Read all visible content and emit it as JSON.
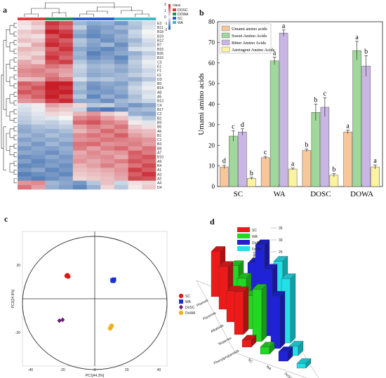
{
  "panels": {
    "a": "a",
    "b": "b",
    "c": "c",
    "d": "d"
  },
  "chart_data": [
    {
      "type": "heatmap",
      "legend_title": "class",
      "legend_entries": [
        {
          "name": "DOSC",
          "color": "#e63a3a"
        },
        {
          "name": "DOWA",
          "color": "#1f8e5a"
        },
        {
          "name": "SC",
          "color": "#2b5fc8"
        },
        {
          "name": "WA",
          "color": "#3fb7c9"
        }
      ],
      "scale_ticks": [
        "2",
        "1",
        "0",
        "-1",
        "-2"
      ],
      "row_labels": [
        "E3",
        "B11",
        "B18",
        "B19",
        "B12",
        "B7",
        "B15",
        "B26",
        "B16",
        "C3",
        "E1",
        "F1",
        "F2",
        "D3",
        "B5",
        "B14",
        "A8",
        "A5",
        "B13",
        "C4",
        "B17",
        "C2",
        "B2",
        "B9",
        "B6",
        "A6",
        "B1",
        "C1",
        "B3",
        "B8",
        "A7",
        "B10",
        "A9",
        "B4",
        "A1",
        "A3",
        "A2",
        "A4",
        "D4"
      ],
      "matrix": [
        [
          0.2,
          0.5,
          1.8,
          1.5,
          -0.8,
          -1.0,
          -0.9,
          -1.2,
          -0.6,
          -0.3
        ],
        [
          0.1,
          0.3,
          1.6,
          1.3,
          -0.5,
          -1.2,
          -1.1,
          -0.8,
          -0.7,
          -0.2
        ],
        [
          0.4,
          0.6,
          2.0,
          1.7,
          -0.9,
          -1.3,
          -1.0,
          -1.1,
          -0.4,
          0.0
        ],
        [
          0.3,
          0.2,
          1.5,
          1.9,
          -1.1,
          -1.4,
          -1.2,
          -0.9,
          -0.5,
          -0.1
        ],
        [
          0.5,
          0.4,
          1.7,
          1.4,
          -0.6,
          -1.0,
          -1.3,
          -1.0,
          -0.8,
          -0.3
        ],
        [
          0.2,
          0.7,
          1.9,
          1.6,
          -0.7,
          -1.1,
          -0.8,
          -1.3,
          -0.6,
          -0.4
        ],
        [
          0.6,
          0.5,
          1.4,
          1.8,
          -1.0,
          -1.2,
          -1.4,
          -1.1,
          -0.3,
          -0.2
        ],
        [
          0.4,
          0.3,
          1.6,
          1.5,
          -0.8,
          -1.5,
          -1.2,
          -1.0,
          -0.9,
          -0.5
        ],
        [
          0.3,
          0.6,
          1.8,
          1.3,
          -0.9,
          -1.3,
          -1.1,
          -1.4,
          -0.7,
          -0.3
        ],
        [
          0.7,
          0.4,
          1.5,
          1.7,
          -0.6,
          -1.0,
          -0.9,
          -1.2,
          -0.5,
          -0.1
        ],
        [
          0.8,
          0.9,
          1.2,
          1.0,
          -0.4,
          -0.8,
          -0.7,
          -0.9,
          -0.6,
          -0.2
        ],
        [
          1.0,
          1.1,
          0.9,
          0.8,
          -0.5,
          -0.9,
          -0.8,
          -1.0,
          -0.7,
          -0.4
        ],
        [
          0.9,
          1.0,
          1.1,
          0.7,
          -0.6,
          -1.0,
          -0.9,
          -0.8,
          -0.5,
          -0.3
        ],
        [
          0.5,
          0.6,
          1.3,
          1.1,
          -0.3,
          -0.7,
          -0.6,
          -0.8,
          -0.9,
          -0.6
        ],
        [
          1.4,
          1.2,
          2.2,
          2.0,
          -0.8,
          -1.2,
          -1.0,
          -1.1,
          -0.6,
          -0.2
        ],
        [
          1.2,
          1.5,
          2.1,
          1.8,
          -0.7,
          -1.3,
          -1.1,
          -0.9,
          -0.4,
          -0.1
        ],
        [
          1.5,
          1.3,
          1.9,
          2.2,
          -0.9,
          -1.1,
          -1.2,
          -1.0,
          -0.5,
          -0.3
        ],
        [
          1.1,
          1.4,
          2.0,
          1.6,
          -0.6,
          -1.4,
          -0.9,
          -1.2,
          -0.7,
          -0.2
        ],
        [
          0.9,
          1.0,
          1.7,
          1.9,
          -1.0,
          -1.0,
          -1.3,
          -0.8,
          -0.6,
          -0.4
        ],
        [
          -0.2,
          0.1,
          0.8,
          0.6,
          0.3,
          -0.6,
          -0.5,
          -0.9,
          -1.2,
          -1.0
        ],
        [
          -0.3,
          -0.1,
          0.5,
          0.4,
          -0.4,
          -1.4,
          -1.6,
          -1.3,
          -0.8,
          -0.7
        ],
        [
          -0.4,
          -0.2,
          0.3,
          0.2,
          0.6,
          0.9,
          0.4,
          0.2,
          -0.9,
          -1.0
        ],
        [
          -0.5,
          -0.3,
          -0.2,
          0.0,
          1.0,
          1.2,
          0.8,
          0.5,
          -0.3,
          -0.6
        ],
        [
          -0.6,
          -0.4,
          -0.5,
          -0.3,
          1.3,
          1.5,
          1.1,
          0.9,
          0.1,
          -0.2
        ],
        [
          -0.9,
          -0.7,
          -0.6,
          -0.5,
          0.8,
          1.1,
          0.9,
          1.2,
          0.4,
          0.2
        ],
        [
          -1.0,
          -0.8,
          -0.9,
          -0.7,
          0.6,
          0.9,
          1.3,
          1.0,
          0.6,
          0.5
        ],
        [
          -0.8,
          -1.0,
          -0.7,
          -0.9,
          1.0,
          1.2,
          1.0,
          1.4,
          0.8,
          0.6
        ],
        [
          -1.1,
          -0.9,
          -1.0,
          -0.8,
          0.9,
          1.0,
          1.2,
          1.1,
          1.0,
          0.9
        ],
        [
          -0.9,
          -1.2,
          -0.8,
          -1.1,
          1.2,
          1.3,
          0.9,
          1.0,
          1.1,
          0.8
        ],
        [
          -1.2,
          -1.0,
          -1.1,
          -0.9,
          1.1,
          0.8,
          1.1,
          1.3,
          0.9,
          1.2
        ],
        [
          -1.0,
          -1.1,
          -1.3,
          -1.0,
          0.7,
          1.0,
          0.8,
          0.9,
          1.4,
          1.1
        ],
        [
          -1.3,
          -1.2,
          -1.0,
          -1.2,
          0.8,
          0.9,
          1.0,
          0.7,
          1.3,
          1.5
        ],
        [
          -1.1,
          -1.4,
          -1.2,
          -1.1,
          0.9,
          0.7,
          0.9,
          1.1,
          1.5,
          1.3
        ],
        [
          -1.4,
          -1.3,
          -1.1,
          -1.3,
          0.6,
          0.8,
          1.1,
          0.8,
          1.2,
          1.6
        ],
        [
          -1.2,
          -1.0,
          -1.4,
          -1.2,
          0.5,
          0.6,
          0.7,
          0.9,
          1.7,
          1.4
        ],
        [
          -1.5,
          -1.3,
          -1.2,
          -1.4,
          0.4,
          0.5,
          0.6,
          0.8,
          1.4,
          1.8
        ],
        [
          -1.3,
          -1.5,
          -1.3,
          -1.1,
          0.3,
          0.4,
          0.5,
          0.7,
          1.6,
          1.5
        ],
        [
          0.9,
          1.0,
          -0.8,
          -1.0,
          -1.2,
          -0.6,
          0.5,
          -0.4,
          0.2,
          0.3
        ],
        [
          1.2,
          0.8,
          -0.9,
          -1.1,
          -1.4,
          -0.9,
          0.3,
          -0.6,
          0.1,
          0.4
        ]
      ],
      "column_classes": [
        "DOSC",
        "DOSC",
        "DOWA",
        "DOWA",
        "SC",
        "SC",
        "SC",
        "WA",
        "WA",
        "WA"
      ]
    },
    {
      "type": "bar",
      "categories": [
        "SC",
        "WA",
        "DOSC",
        "DOWA"
      ],
      "ylabel": "Umami amino acids",
      "ylim": [
        0,
        80
      ],
      "yticks": [
        0,
        10,
        20,
        30,
        40,
        50,
        60,
        70,
        80
      ],
      "series": [
        {
          "name": "Umami amino acids",
          "color": "#f7c79a",
          "values": [
            9.5,
            14,
            17.5,
            26.5
          ],
          "errors": [
            0.8,
            0.6,
            0.7,
            0.9
          ],
          "letters": [
            "d",
            "c",
            "b",
            "a"
          ]
        },
        {
          "name": "Sweet Amino Acids",
          "color": "#9fd89a",
          "values": [
            24.5,
            61,
            36,
            66
          ],
          "errors": [
            2.5,
            1.8,
            4.0,
            4.5
          ],
          "letters": [
            "c",
            "a",
            "b",
            "a"
          ]
        },
        {
          "name": "Bitter Amino Acids",
          "color": "#c9b6e4",
          "values": [
            26.5,
            74.5,
            38.5,
            58.5
          ],
          "errors": [
            1.5,
            1.5,
            4.5,
            5.0
          ],
          "letters": [
            "d",
            "a",
            "c",
            "b"
          ]
        },
        {
          "name": "Astringent Amino Acids",
          "color": "#fbf3a0",
          "values": [
            4,
            8.5,
            5.5,
            9.5
          ],
          "errors": [
            0.5,
            0.5,
            0.8,
            1.0
          ],
          "letters": [
            "b",
            "a",
            "b",
            "a"
          ]
        }
      ]
    },
    {
      "type": "scatter",
      "xlabel": "PC1[44.3%]",
      "ylabel": "PC2[24.8%]",
      "xlim": [
        -45,
        45
      ],
      "ylim": [
        -40,
        40
      ],
      "xticks": [
        "-40",
        "-20",
        "0",
        "20",
        "40"
      ],
      "yticks": [
        "-20",
        "20"
      ],
      "legend_placement": "right",
      "series": [
        {
          "name": "SC",
          "color": "#e01818",
          "shape": "circle",
          "points": [
            [
              -17,
              14
            ],
            [
              -16.5,
              13.2
            ],
            [
              -17.5,
              13.6
            ]
          ]
        },
        {
          "name": "WA",
          "color": "#1a2fd0",
          "shape": "square",
          "points": [
            [
              11,
              11
            ],
            [
              12,
              11.4
            ],
            [
              11.5,
              10.6
            ]
          ]
        },
        {
          "name": "DoSC",
          "color": "#6a1a7a",
          "shape": "diamond",
          "points": [
            [
              -22,
              -13
            ],
            [
              -20,
              -12.5
            ]
          ]
        },
        {
          "name": "DoWA",
          "color": "#f0b020",
          "shape": "circle",
          "points": [
            [
              10,
              -17
            ],
            [
              10.5,
              -16
            ],
            [
              9.6,
              -17.6
            ]
          ]
        }
      ]
    },
    {
      "type": "bar",
      "subtype": "3d",
      "zlabel": "Number of metabolites",
      "zlim": [
        0,
        35
      ],
      "zticks": [
        0,
        5,
        10,
        15,
        20,
        25,
        30,
        35
      ],
      "categories": [
        "Phenols",
        "Flavones",
        "Alkaloids",
        "Terpenes",
        "Phenylpropanoids"
      ],
      "legend": [
        {
          "name": "SC",
          "color": "#ee1a1a"
        },
        {
          "name": "WA",
          "color": "#22d822"
        },
        {
          "name": "DoSC",
          "color": "#1f22d8"
        },
        {
          "name": "DoWA",
          "color": "#20e0e8"
        }
      ],
      "series": [
        {
          "name": "SC",
          "values": [
            19,
            18,
            13,
            18,
            3
          ]
        },
        {
          "name": "WA",
          "values": [
            16,
            16,
            14,
            22,
            3
          ]
        },
        {
          "name": "DoSC",
          "values": [
            20,
            33,
            28,
            22,
            4
          ]
        },
        {
          "name": "DoWA",
          "values": [
            18,
            29,
            27,
            4,
            2
          ]
        }
      ]
    }
  ]
}
